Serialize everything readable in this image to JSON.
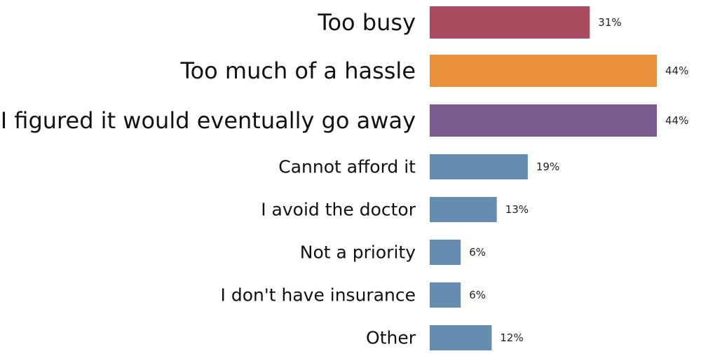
{
  "chart_data": {
    "type": "bar",
    "orientation": "horizontal",
    "categories": [
      "Too busy",
      "Too much of a hassle",
      "I figured it would eventually go away",
      "Cannot afford it",
      "I avoid the doctor",
      "Not a priority",
      "I don't have insurance",
      "Other"
    ],
    "values": [
      31,
      44,
      44,
      19,
      13,
      6,
      6,
      12
    ],
    "value_labels": [
      "31%",
      "44%",
      "44%",
      "19%",
      "13%",
      "6%",
      "6%",
      "12%"
    ],
    "colors": [
      "#a84b5e",
      "#e8913a",
      "#7b5b8f",
      "#658db0",
      "#658db0",
      "#658db0",
      "#658db0",
      "#658db0"
    ],
    "highlighted": [
      true,
      true,
      true,
      false,
      false,
      false,
      false,
      false
    ],
    "xlim": [
      0,
      44
    ],
    "unit": "%",
    "title": "",
    "xlabel": "",
    "ylabel": "",
    "grid": false,
    "legend": "none"
  }
}
